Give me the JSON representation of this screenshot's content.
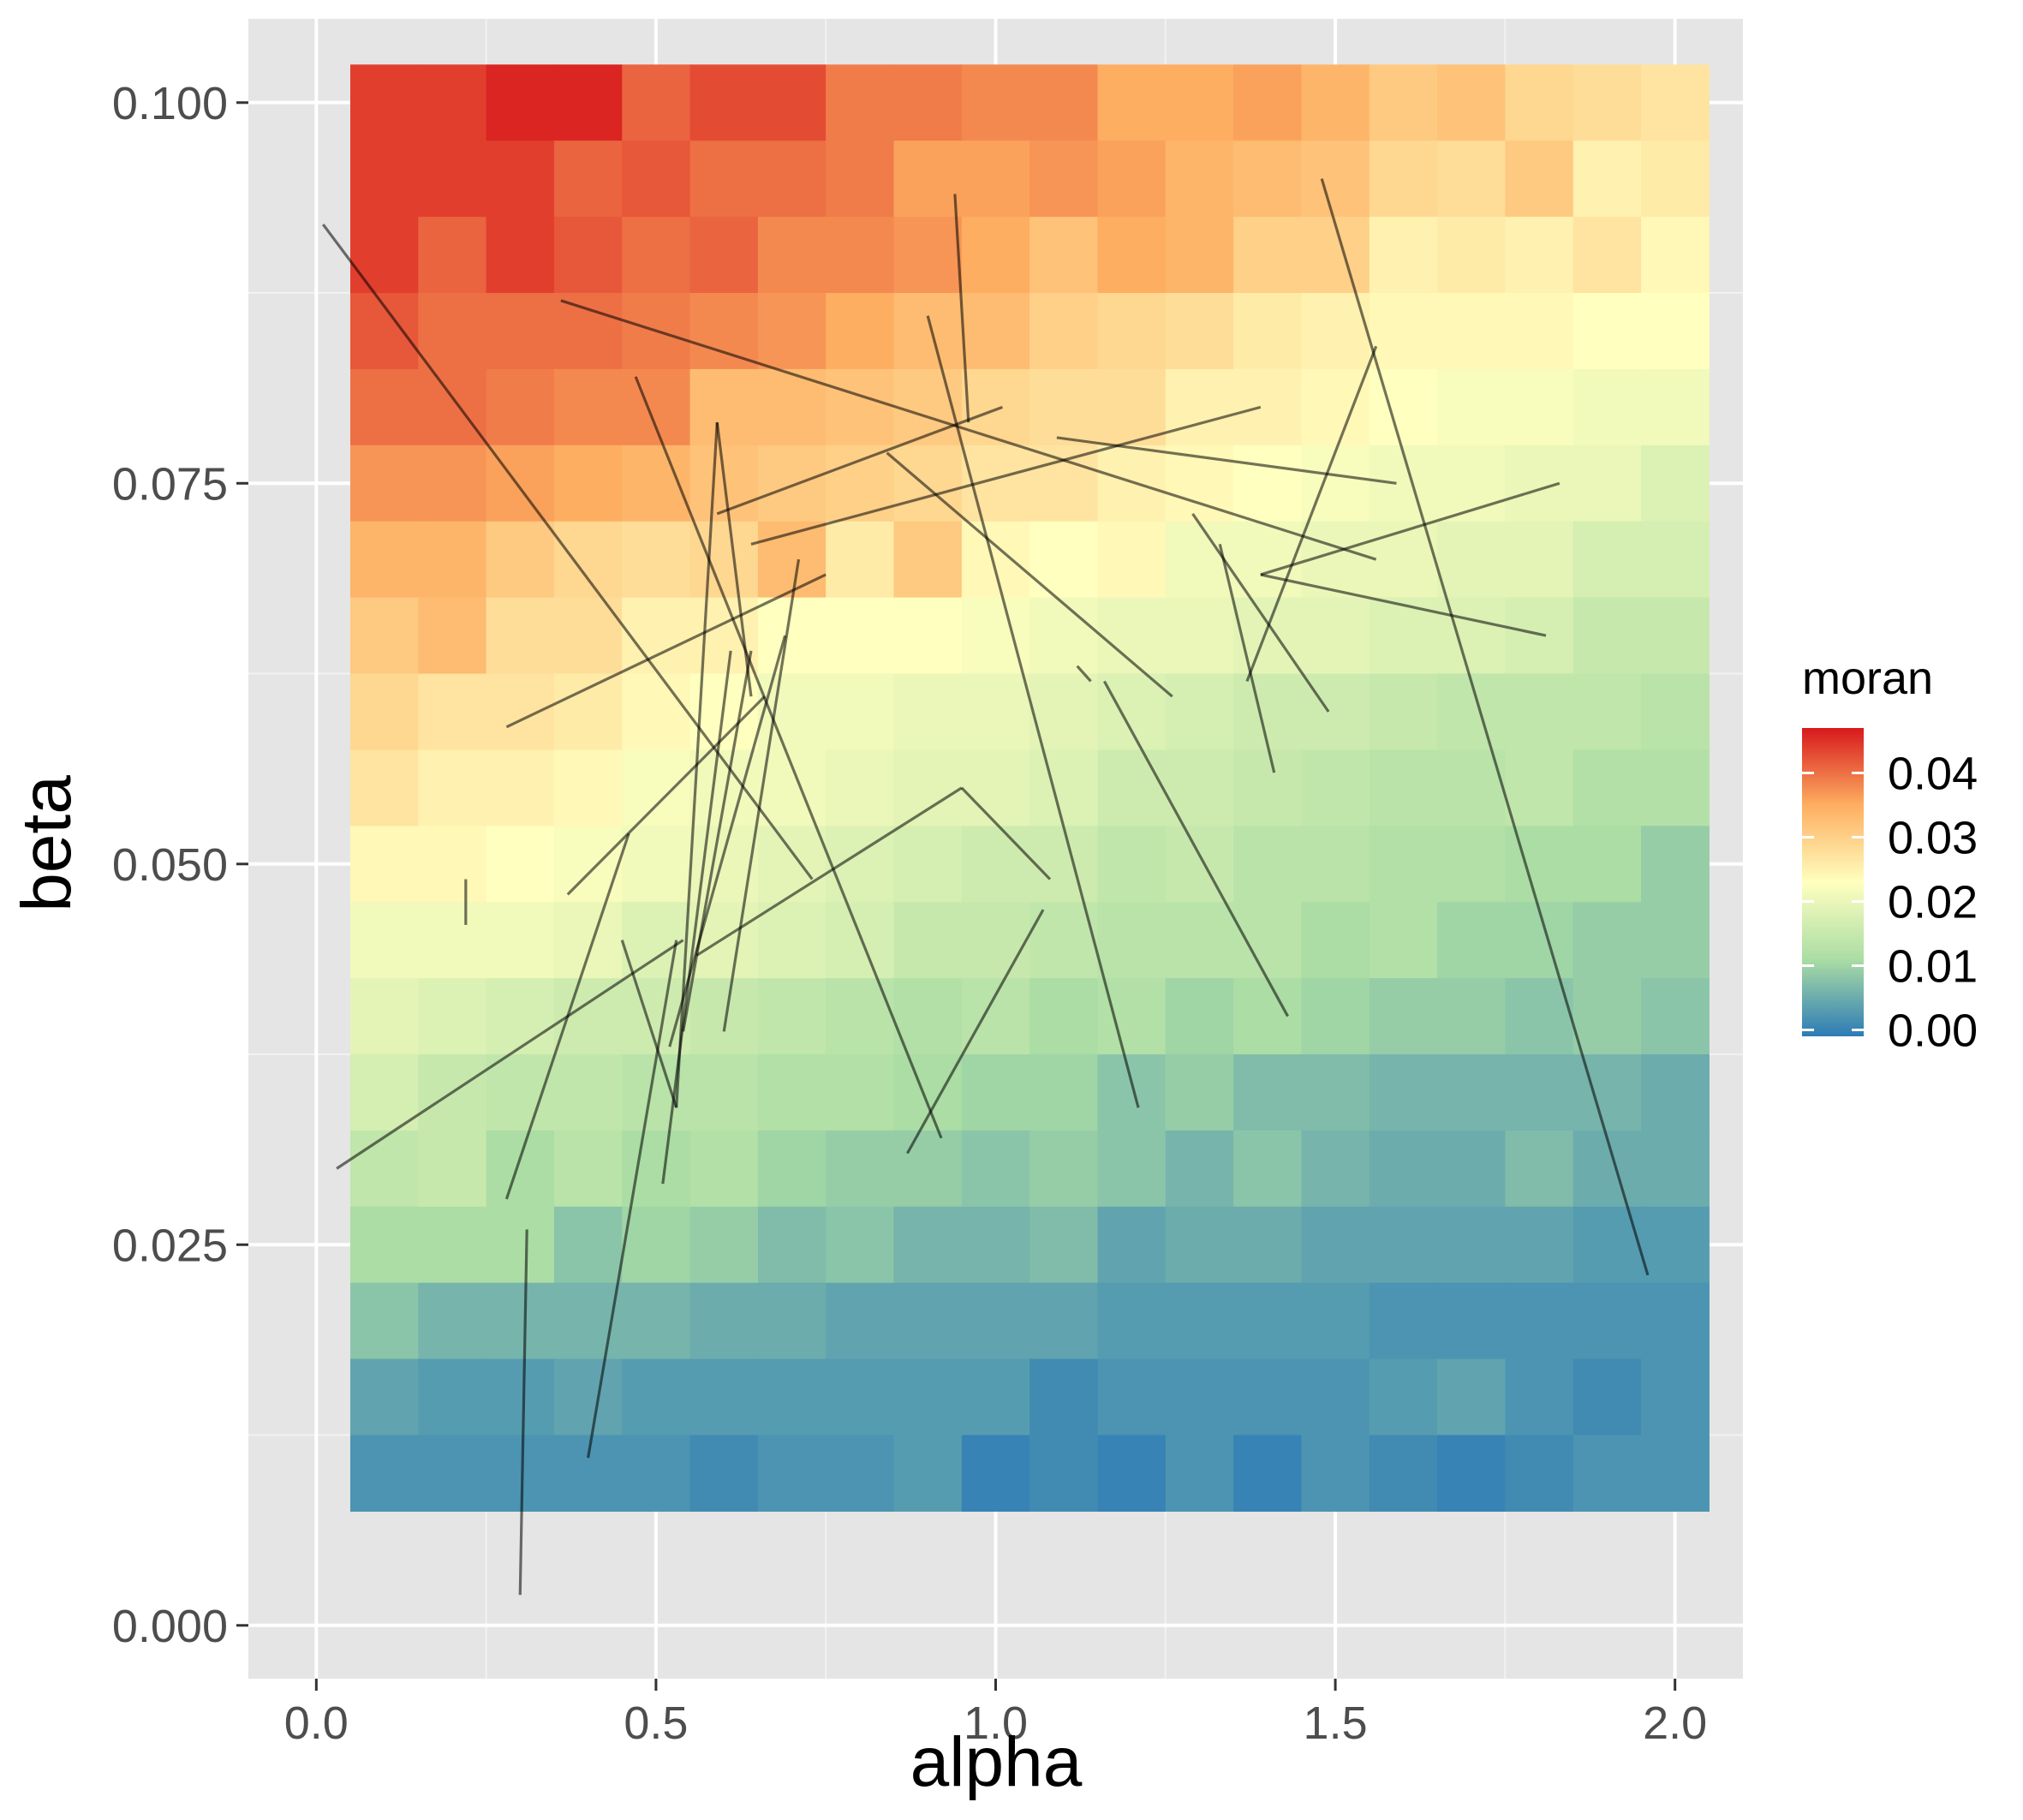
{
  "chart_data": {
    "type": "heatmap",
    "xlabel": "alpha",
    "ylabel": "beta",
    "x_ticks": [
      "0.0",
      "0.5",
      "1.0",
      "1.5",
      "2.0"
    ],
    "x_tick_values": [
      0,
      0.5,
      1.0,
      1.5,
      2.0
    ],
    "y_ticks": [
      "0.000",
      "0.025",
      "0.050",
      "0.075",
      "0.100"
    ],
    "y_tick_values": [
      0,
      0.025,
      0.05,
      0.075,
      0.1
    ],
    "xlim": [
      -0.1,
      2.1
    ],
    "ylim": [
      -0.0035,
      0.1055
    ],
    "grid": true,
    "legend": {
      "title": "moran",
      "position": "right",
      "labels": [
        "0.04",
        "0.03",
        "0.02",
        "0.01",
        "0.00"
      ],
      "values": [
        0.04,
        0.03,
        0.02,
        0.01,
        0.0
      ],
      "range": [
        -0.001,
        0.047
      ],
      "colors": [
        "#2c7bb6",
        "#abdda4",
        "#ffffbf",
        "#fdae61",
        "#d7191c"
      ]
    },
    "x": [
      0.1,
      0.2,
      0.3,
      0.4,
      0.5,
      0.6,
      0.7,
      0.8,
      0.9,
      1.0,
      1.1,
      1.2,
      1.3,
      1.4,
      1.5,
      1.6,
      1.7,
      1.8,
      1.9,
      2.0
    ],
    "y": [
      0.1,
      0.095,
      0.09,
      0.085,
      0.08,
      0.075,
      0.07,
      0.065,
      0.06,
      0.055,
      0.05,
      0.045,
      0.04,
      0.035,
      0.03,
      0.025,
      0.02,
      0.015,
      0.01
    ],
    "z": [
      [
        0.044,
        0.044,
        0.046,
        0.046,
        0.041,
        0.043,
        0.043,
        0.039,
        0.039,
        0.038,
        0.038,
        0.035,
        0.035,
        0.036,
        0.034,
        0.031,
        0.032,
        0.029,
        0.028,
        0.027
      ],
      [
        0.044,
        0.044,
        0.044,
        0.041,
        0.042,
        0.04,
        0.04,
        0.039,
        0.036,
        0.036,
        0.037,
        0.036,
        0.034,
        0.033,
        0.032,
        0.029,
        0.028,
        0.031,
        0.025,
        0.026
      ],
      [
        0.044,
        0.041,
        0.044,
        0.042,
        0.04,
        0.041,
        0.038,
        0.038,
        0.037,
        0.035,
        0.032,
        0.035,
        0.034,
        0.03,
        0.03,
        0.025,
        0.026,
        0.025,
        0.027,
        0.024
      ],
      [
        0.042,
        0.04,
        0.04,
        0.04,
        0.039,
        0.038,
        0.037,
        0.035,
        0.033,
        0.033,
        0.03,
        0.029,
        0.028,
        0.026,
        0.025,
        0.024,
        0.024,
        0.024,
        0.023,
        0.023
      ],
      [
        0.04,
        0.04,
        0.039,
        0.038,
        0.038,
        0.033,
        0.033,
        0.032,
        0.031,
        0.029,
        0.028,
        0.028,
        0.025,
        0.025,
        0.024,
        0.023,
        0.022,
        0.022,
        0.021,
        0.021
      ],
      [
        0.037,
        0.037,
        0.036,
        0.035,
        0.034,
        0.032,
        0.031,
        0.03,
        0.029,
        0.027,
        0.027,
        0.025,
        0.024,
        0.023,
        0.022,
        0.021,
        0.021,
        0.02,
        0.02,
        0.018
      ],
      [
        0.034,
        0.034,
        0.031,
        0.029,
        0.028,
        0.029,
        0.033,
        0.026,
        0.031,
        0.024,
        0.023,
        0.024,
        0.021,
        0.021,
        0.02,
        0.02,
        0.019,
        0.019,
        0.017,
        0.017
      ],
      [
        0.031,
        0.033,
        0.028,
        0.028,
        0.025,
        0.025,
        0.023,
        0.023,
        0.023,
        0.022,
        0.021,
        0.02,
        0.02,
        0.019,
        0.019,
        0.018,
        0.018,
        0.017,
        0.015,
        0.015
      ],
      [
        0.029,
        0.027,
        0.027,
        0.026,
        0.024,
        0.023,
        0.021,
        0.021,
        0.02,
        0.02,
        0.019,
        0.018,
        0.017,
        0.016,
        0.016,
        0.015,
        0.014,
        0.014,
        0.014,
        0.013
      ],
      [
        0.027,
        0.025,
        0.025,
        0.024,
        0.022,
        0.021,
        0.021,
        0.02,
        0.019,
        0.019,
        0.018,
        0.016,
        0.016,
        0.015,
        0.014,
        0.013,
        0.013,
        0.014,
        0.012,
        0.012
      ],
      [
        0.024,
        0.024,
        0.023,
        0.022,
        0.021,
        0.02,
        0.019,
        0.018,
        0.017,
        0.016,
        0.016,
        0.014,
        0.015,
        0.013,
        0.013,
        0.012,
        0.012,
        0.011,
        0.011,
        0.009
      ],
      [
        0.021,
        0.021,
        0.021,
        0.02,
        0.018,
        0.019,
        0.018,
        0.017,
        0.015,
        0.015,
        0.014,
        0.013,
        0.013,
        0.013,
        0.011,
        0.012,
        0.01,
        0.01,
        0.009,
        0.009
      ],
      [
        0.019,
        0.018,
        0.017,
        0.016,
        0.016,
        0.015,
        0.014,
        0.013,
        0.012,
        0.013,
        0.011,
        0.012,
        0.01,
        0.011,
        0.01,
        0.009,
        0.009,
        0.008,
        0.009,
        0.008
      ],
      [
        0.017,
        0.015,
        0.014,
        0.014,
        0.013,
        0.013,
        0.012,
        0.012,
        0.011,
        0.01,
        0.01,
        0.008,
        0.009,
        0.007,
        0.007,
        0.006,
        0.006,
        0.006,
        0.006,
        0.005
      ],
      [
        0.014,
        0.015,
        0.011,
        0.013,
        0.011,
        0.012,
        0.01,
        0.009,
        0.009,
        0.008,
        0.009,
        0.008,
        0.006,
        0.008,
        0.006,
        0.005,
        0.005,
        0.007,
        0.005,
        0.005
      ],
      [
        0.011,
        0.011,
        0.011,
        0.008,
        0.01,
        0.009,
        0.007,
        0.008,
        0.006,
        0.006,
        0.007,
        0.004,
        0.005,
        0.005,
        0.004,
        0.004,
        0.004,
        0.004,
        0.003,
        0.003
      ],
      [
        0.008,
        0.006,
        0.006,
        0.006,
        0.006,
        0.005,
        0.005,
        0.004,
        0.004,
        0.004,
        0.004,
        0.003,
        0.003,
        0.003,
        0.003,
        0.002,
        0.002,
        0.002,
        0.002,
        0.002
      ],
      [
        0.004,
        0.003,
        0.003,
        0.004,
        0.003,
        0.003,
        0.003,
        0.003,
        0.003,
        0.003,
        0.001,
        0.002,
        0.002,
        0.002,
        0.002,
        0.003,
        0.004,
        0.002,
        0.001,
        0.002
      ],
      [
        0.002,
        0.002,
        0.002,
        0.002,
        0.002,
        0.001,
        0.002,
        0.002,
        0.003,
        0.0,
        0.001,
        0.0,
        0.002,
        0.0,
        0.002,
        0.001,
        0.0,
        0.001,
        0.002,
        0.002
      ]
    ],
    "segments": [
      [
        0.01,
        0.092,
        0.73,
        0.049
      ],
      [
        0.36,
        0.087,
        1.56,
        0.07
      ],
      [
        0.94,
        0.094,
        0.96,
        0.079
      ],
      [
        0.9,
        0.086,
        1.21,
        0.034
      ],
      [
        0.59,
        0.073,
        1.01,
        0.08
      ],
      [
        0.64,
        0.071,
        1.39,
        0.08
      ],
      [
        0.47,
        0.082,
        0.92,
        0.032
      ],
      [
        0.59,
        0.079,
        0.64,
        0.061
      ],
      [
        0.84,
        0.077,
        1.26,
        0.061
      ],
      [
        1.09,
        0.078,
        1.59,
        0.075
      ],
      [
        1.48,
        0.095,
        1.96,
        0.023
      ],
      [
        1.56,
        0.084,
        1.37,
        0.062
      ],
      [
        1.39,
        0.069,
        1.83,
        0.075
      ],
      [
        1.39,
        0.069,
        1.81,
        0.065
      ],
      [
        1.29,
        0.073,
        1.49,
        0.06
      ],
      [
        1.33,
        0.071,
        1.41,
        0.056
      ],
      [
        0.28,
        0.059,
        0.75,
        0.069
      ],
      [
        0.37,
        0.048,
        0.66,
        0.061
      ],
      [
        0.46,
        0.052,
        0.28,
        0.028
      ],
      [
        0.03,
        0.03,
        0.54,
        0.045
      ],
      [
        0.56,
        0.044,
        0.95,
        0.055
      ],
      [
        0.95,
        0.055,
        1.08,
        0.049
      ],
      [
        1.16,
        0.062,
        1.43,
        0.04
      ],
      [
        1.12,
        0.063,
        1.14,
        0.062
      ],
      [
        0.87,
        0.031,
        1.07,
        0.047
      ],
      [
        0.45,
        0.045,
        0.53,
        0.034
      ],
      [
        0.53,
        0.034,
        0.59,
        0.079
      ],
      [
        0.51,
        0.029,
        0.61,
        0.064
      ],
      [
        0.54,
        0.039,
        0.64,
        0.064
      ],
      [
        0.6,
        0.039,
        0.71,
        0.07
      ],
      [
        0.52,
        0.038,
        0.69,
        0.065
      ],
      [
        0.4,
        0.011,
        0.53,
        0.045
      ],
      [
        0.31,
        0.026,
        0.3,
        0.002
      ],
      [
        0.22,
        0.049,
        0.22,
        0.046
      ]
    ]
  }
}
